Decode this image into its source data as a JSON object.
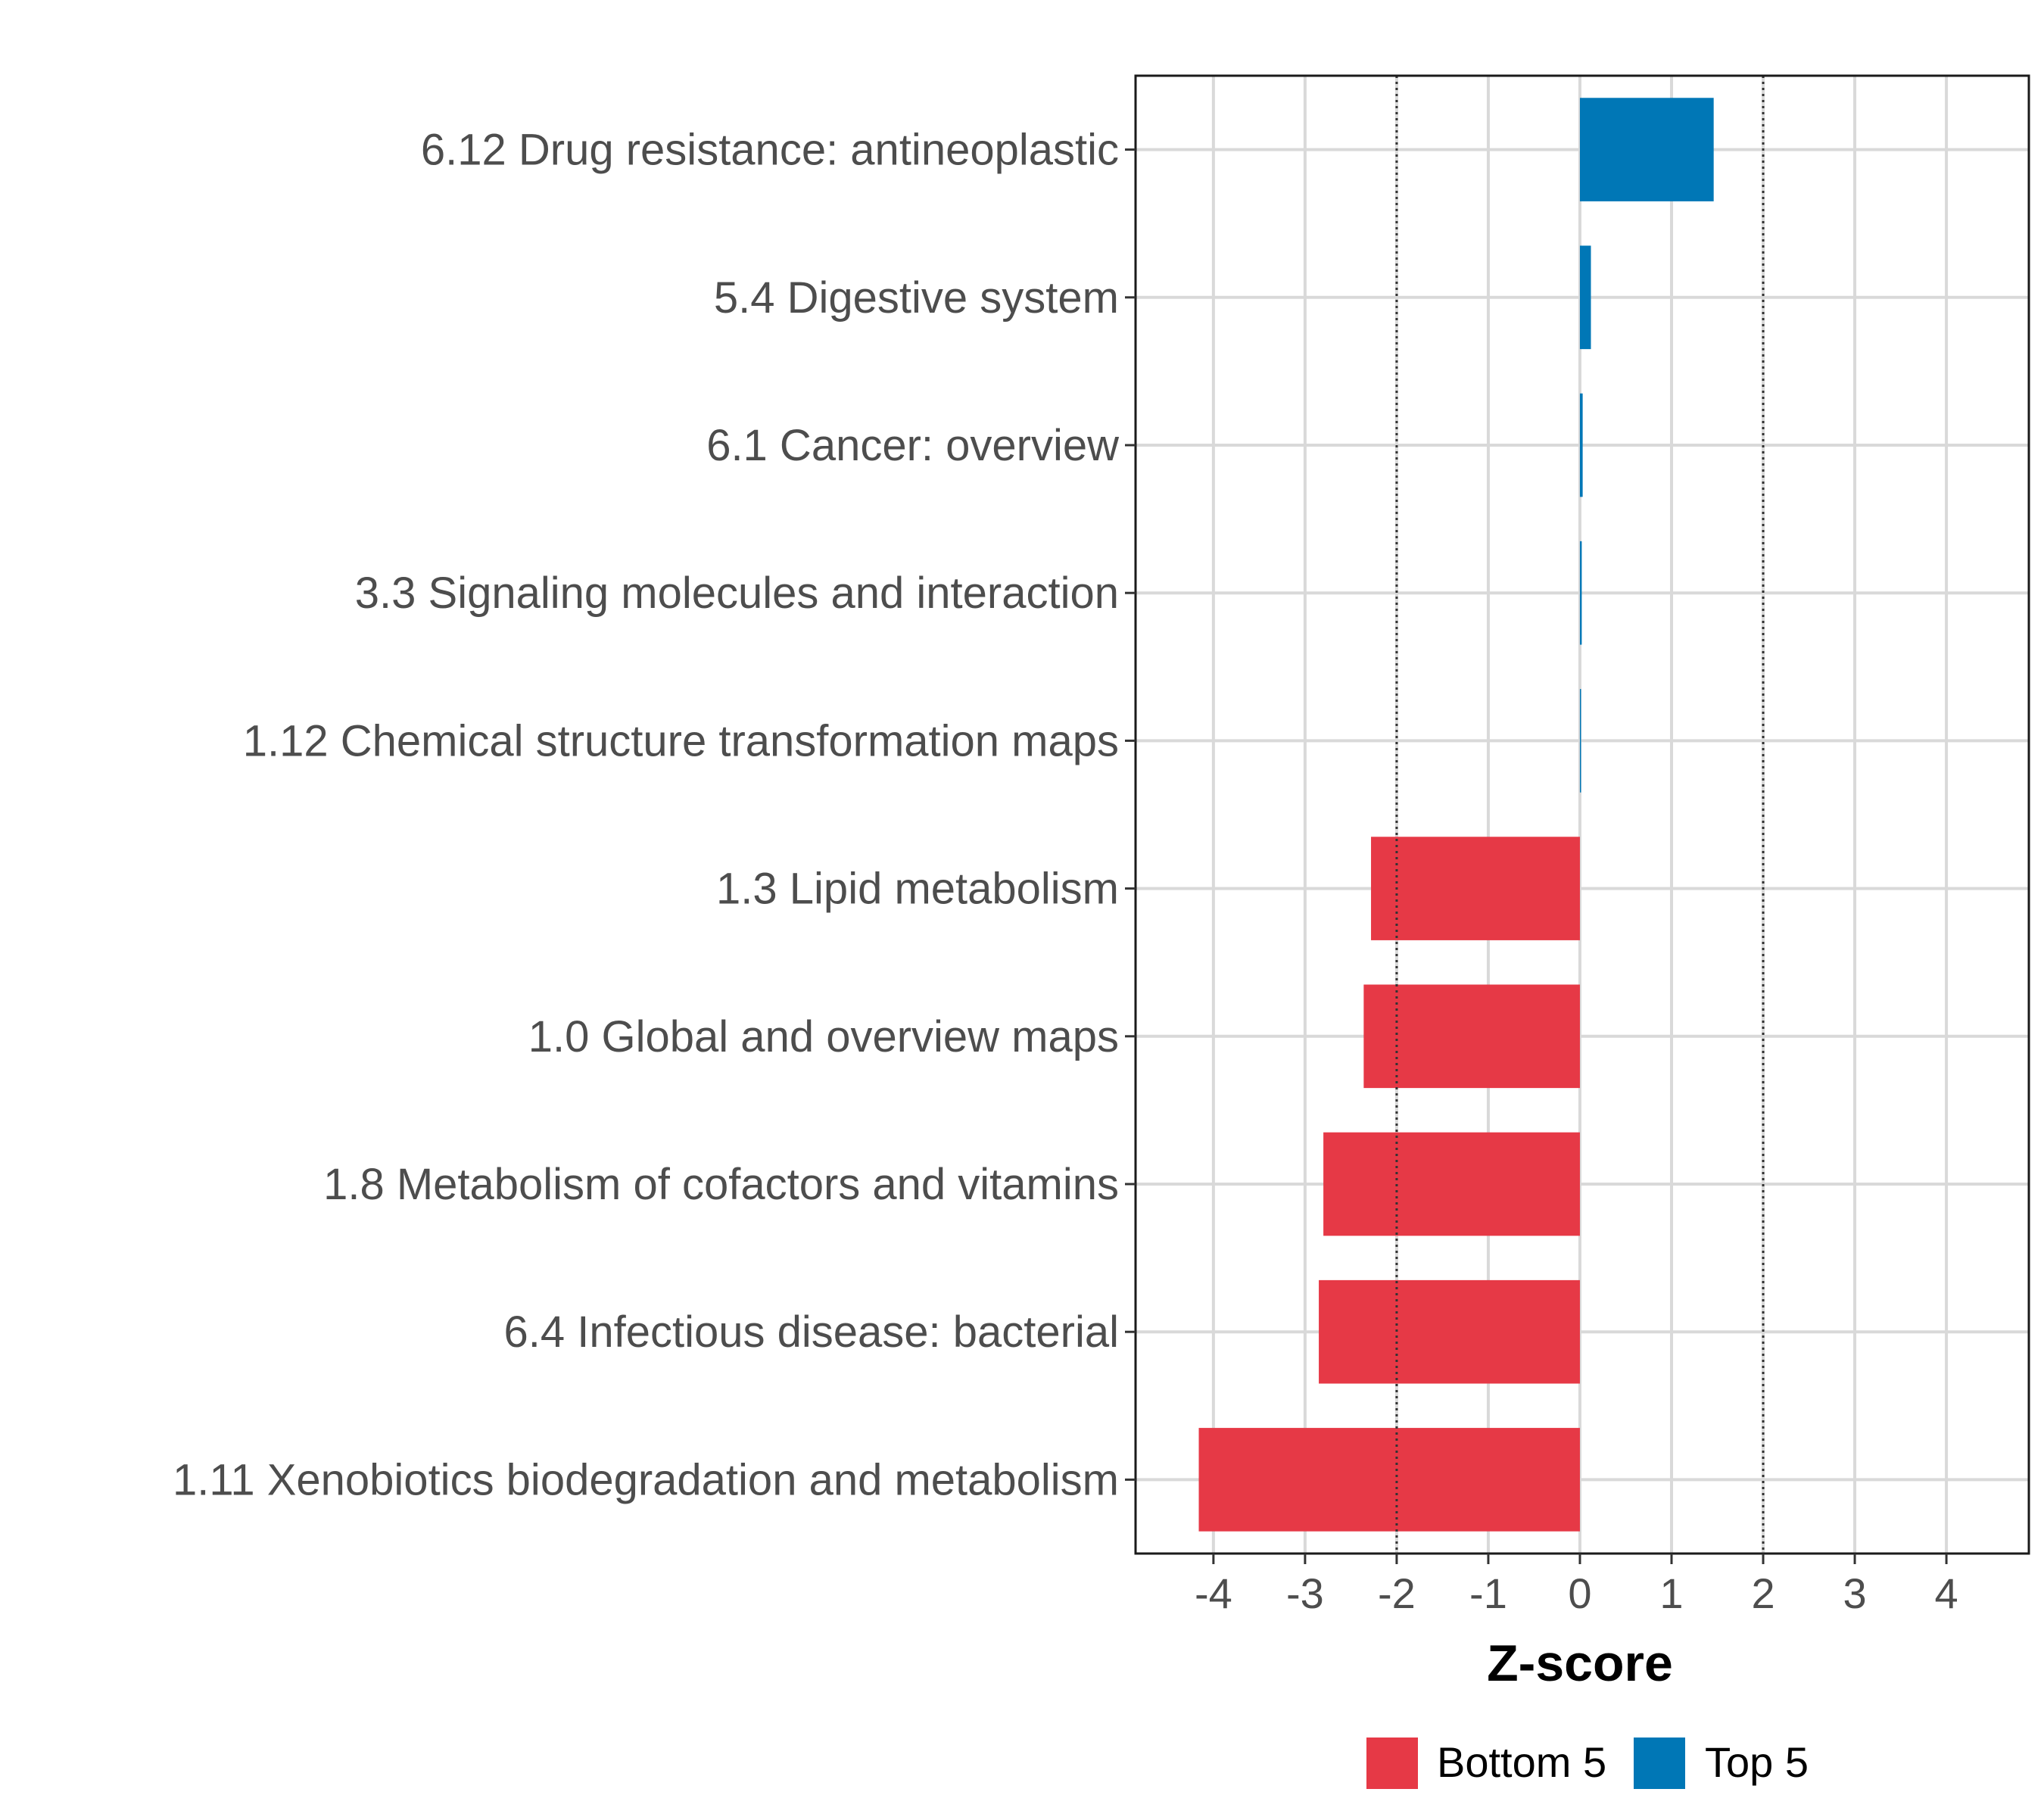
{
  "chart_data": {
    "type": "bar",
    "orientation": "horizontal",
    "xlabel": "Z-score",
    "ylabel": "",
    "xlim": [
      -4.85,
      4.9
    ],
    "x_ticks": [
      -4,
      -3,
      -2,
      -1,
      0,
      1,
      2,
      3,
      4
    ],
    "x_tick_labels": [
      "-4",
      "-3",
      "-2",
      "-1",
      "0",
      "1",
      "2",
      "3",
      "4"
    ],
    "reference_lines": [
      -2,
      2
    ],
    "grid": true,
    "categories": [
      "6.12 Drug resistance: antineoplastic",
      "5.4 Digestive system",
      "6.1 Cancer: overview",
      "3.3 Signaling molecules and interaction",
      "1.12 Chemical structure transformation maps",
      "1.3 Lipid metabolism",
      "1.0 Global and overview maps",
      "1.8 Metabolism of cofactors and vitamins",
      "6.4 Infectious disease: bacterial",
      "1.11 Xenobiotics biodegradation and metabolism"
    ],
    "values": [
      1.46,
      0.12,
      0.03,
      0.02,
      0.01,
      -2.28,
      -2.36,
      -2.8,
      -2.85,
      -4.16
    ],
    "groups": [
      "Top 5",
      "Top 5",
      "Top 5",
      "Top 5",
      "Top 5",
      "Bottom 5",
      "Bottom 5",
      "Bottom 5",
      "Bottom 5",
      "Bottom 5"
    ],
    "legend": {
      "placement": "bottom",
      "entries": [
        {
          "label": "Bottom 5",
          "color": "#e63946"
        },
        {
          "label": "Top 5",
          "color": "#0077b6"
        }
      ]
    }
  }
}
